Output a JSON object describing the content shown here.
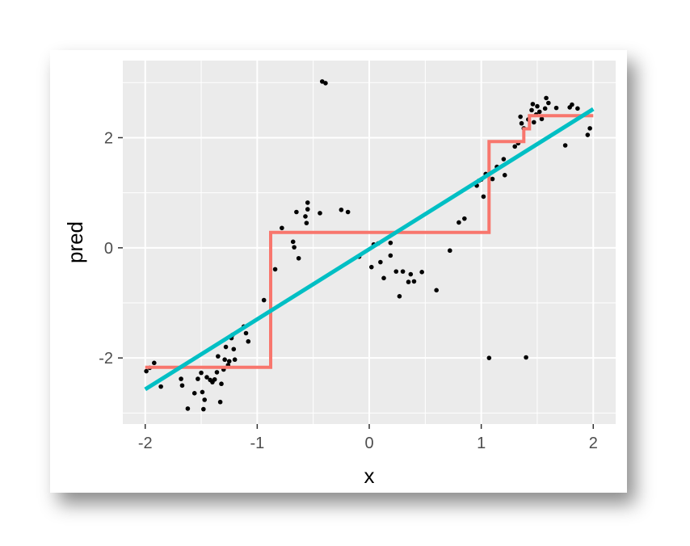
{
  "chart_data": {
    "type": "scatter",
    "xlabel": "x",
    "ylabel": "pred",
    "xlim": [
      -2.2,
      2.2
    ],
    "ylim": [
      -3.2,
      3.4
    ],
    "x_ticks": [
      -2,
      -1,
      0,
      1,
      2
    ],
    "x_tick_labels": [
      "-2",
      "-1",
      "0",
      "1",
      "2"
    ],
    "y_ticks": [
      -2,
      0,
      2
    ],
    "y_tick_labels": [
      "-2",
      "0",
      "2"
    ],
    "grid": true,
    "legend": "none",
    "colors": {
      "panel": "#ebebeb",
      "grid": "#ffffff",
      "points": "#000000",
      "step_line": "#f8766d",
      "linear_line": "#00bfc4"
    },
    "series": [
      {
        "type": "scatter",
        "points": [
          [
            -1.99,
            -2.24
          ],
          [
            -1.96,
            -2.18
          ],
          [
            -1.92,
            -2.09
          ],
          [
            -1.86,
            -2.52
          ],
          [
            -1.68,
            -2.38
          ],
          [
            -1.67,
            -2.5
          ],
          [
            -1.62,
            -2.92
          ],
          [
            -1.56,
            -2.64
          ],
          [
            -1.53,
            -2.38
          ],
          [
            -1.5,
            -2.27
          ],
          [
            -1.49,
            -2.62
          ],
          [
            -1.48,
            -2.93
          ],
          [
            -1.47,
            -2.76
          ],
          [
            -1.45,
            -2.35
          ],
          [
            -1.42,
            -2.4
          ],
          [
            -1.4,
            -2.44
          ],
          [
            -1.38,
            -2.39
          ],
          [
            -1.36,
            -2.26
          ],
          [
            -1.35,
            -1.97
          ],
          [
            -1.33,
            -2.8
          ],
          [
            -1.32,
            -2.47
          ],
          [
            -1.3,
            -2.21
          ],
          [
            -1.29,
            -2.03
          ],
          [
            -1.28,
            -1.8
          ],
          [
            -1.26,
            -2.13
          ],
          [
            -1.25,
            -2.06
          ],
          [
            -1.23,
            -1.64
          ],
          [
            -1.22,
            -1.58
          ],
          [
            -1.21,
            -1.84
          ],
          [
            -1.2,
            -2.03
          ],
          [
            -1.12,
            -1.43
          ],
          [
            -1.1,
            -1.55
          ],
          [
            -1.08,
            -1.7
          ],
          [
            -0.94,
            -0.95
          ],
          [
            -0.84,
            -0.39
          ],
          [
            -0.78,
            0.36
          ],
          [
            -0.68,
            0.11
          ],
          [
            -0.67,
            0.01
          ],
          [
            -0.65,
            0.65
          ],
          [
            -0.63,
            -0.19
          ],
          [
            -0.57,
            0.57
          ],
          [
            -0.56,
            0.45
          ],
          [
            -0.55,
            0.82
          ],
          [
            -0.55,
            0.7
          ],
          [
            -0.44,
            0.63
          ],
          [
            -0.42,
            3.02
          ],
          [
            -0.39,
            2.99
          ],
          [
            -0.25,
            0.69
          ],
          [
            -0.19,
            0.65
          ],
          [
            -0.09,
            -0.16
          ],
          [
            0.02,
            -0.35
          ],
          [
            0.04,
            0.06
          ],
          [
            0.08,
            0.08
          ],
          [
            0.1,
            -0.26
          ],
          [
            0.13,
            -0.55
          ],
          [
            0.19,
            -0.14
          ],
          [
            0.19,
            0.09
          ],
          [
            0.24,
            -0.43
          ],
          [
            0.27,
            -0.88
          ],
          [
            0.3,
            -0.43
          ],
          [
            0.35,
            -0.62
          ],
          [
            0.37,
            -0.48
          ],
          [
            0.4,
            -0.61
          ],
          [
            0.47,
            -0.44
          ],
          [
            0.6,
            -0.77
          ],
          [
            0.72,
            -0.05
          ],
          [
            0.8,
            0.46
          ],
          [
            0.85,
            0.53
          ],
          [
            0.96,
            1.13
          ],
          [
            0.98,
            1.22
          ],
          [
            1.0,
            1.24
          ],
          [
            1.02,
            0.93
          ],
          [
            1.04,
            1.34
          ],
          [
            1.07,
            -2.0
          ],
          [
            1.1,
            1.25
          ],
          [
            1.14,
            1.47
          ],
          [
            1.2,
            1.61
          ],
          [
            1.21,
            1.32
          ],
          [
            1.3,
            1.84
          ],
          [
            1.33,
            1.9
          ],
          [
            1.35,
            2.38
          ],
          [
            1.36,
            2.26
          ],
          [
            1.38,
            2.17
          ],
          [
            1.4,
            -1.99
          ],
          [
            1.42,
            2.33
          ],
          [
            1.45,
            2.5
          ],
          [
            1.46,
            2.61
          ],
          [
            1.47,
            2.28
          ],
          [
            1.49,
            2.42
          ],
          [
            1.5,
            2.57
          ],
          [
            1.52,
            2.47
          ],
          [
            1.54,
            2.34
          ],
          [
            1.57,
            2.53
          ],
          [
            1.58,
            2.72
          ],
          [
            1.6,
            2.63
          ],
          [
            1.67,
            2.54
          ],
          [
            1.75,
            1.86
          ],
          [
            1.79,
            2.55
          ],
          [
            1.81,
            2.6
          ],
          [
            1.86,
            2.53
          ],
          [
            1.95,
            2.05
          ],
          [
            1.97,
            2.17
          ]
        ]
      },
      {
        "type": "step",
        "points": [
          [
            -2.0,
            -2.17
          ],
          [
            -0.88,
            -2.17
          ],
          [
            -0.88,
            0.28
          ],
          [
            1.07,
            0.28
          ],
          [
            1.07,
            1.93
          ],
          [
            1.38,
            1.93
          ],
          [
            1.38,
            2.16
          ],
          [
            1.43,
            2.16
          ],
          [
            1.43,
            2.4
          ],
          [
            2.0,
            2.4
          ]
        ]
      },
      {
        "type": "line",
        "points": [
          [
            -2.0,
            -2.57
          ],
          [
            2.0,
            2.52
          ]
        ]
      }
    ]
  }
}
